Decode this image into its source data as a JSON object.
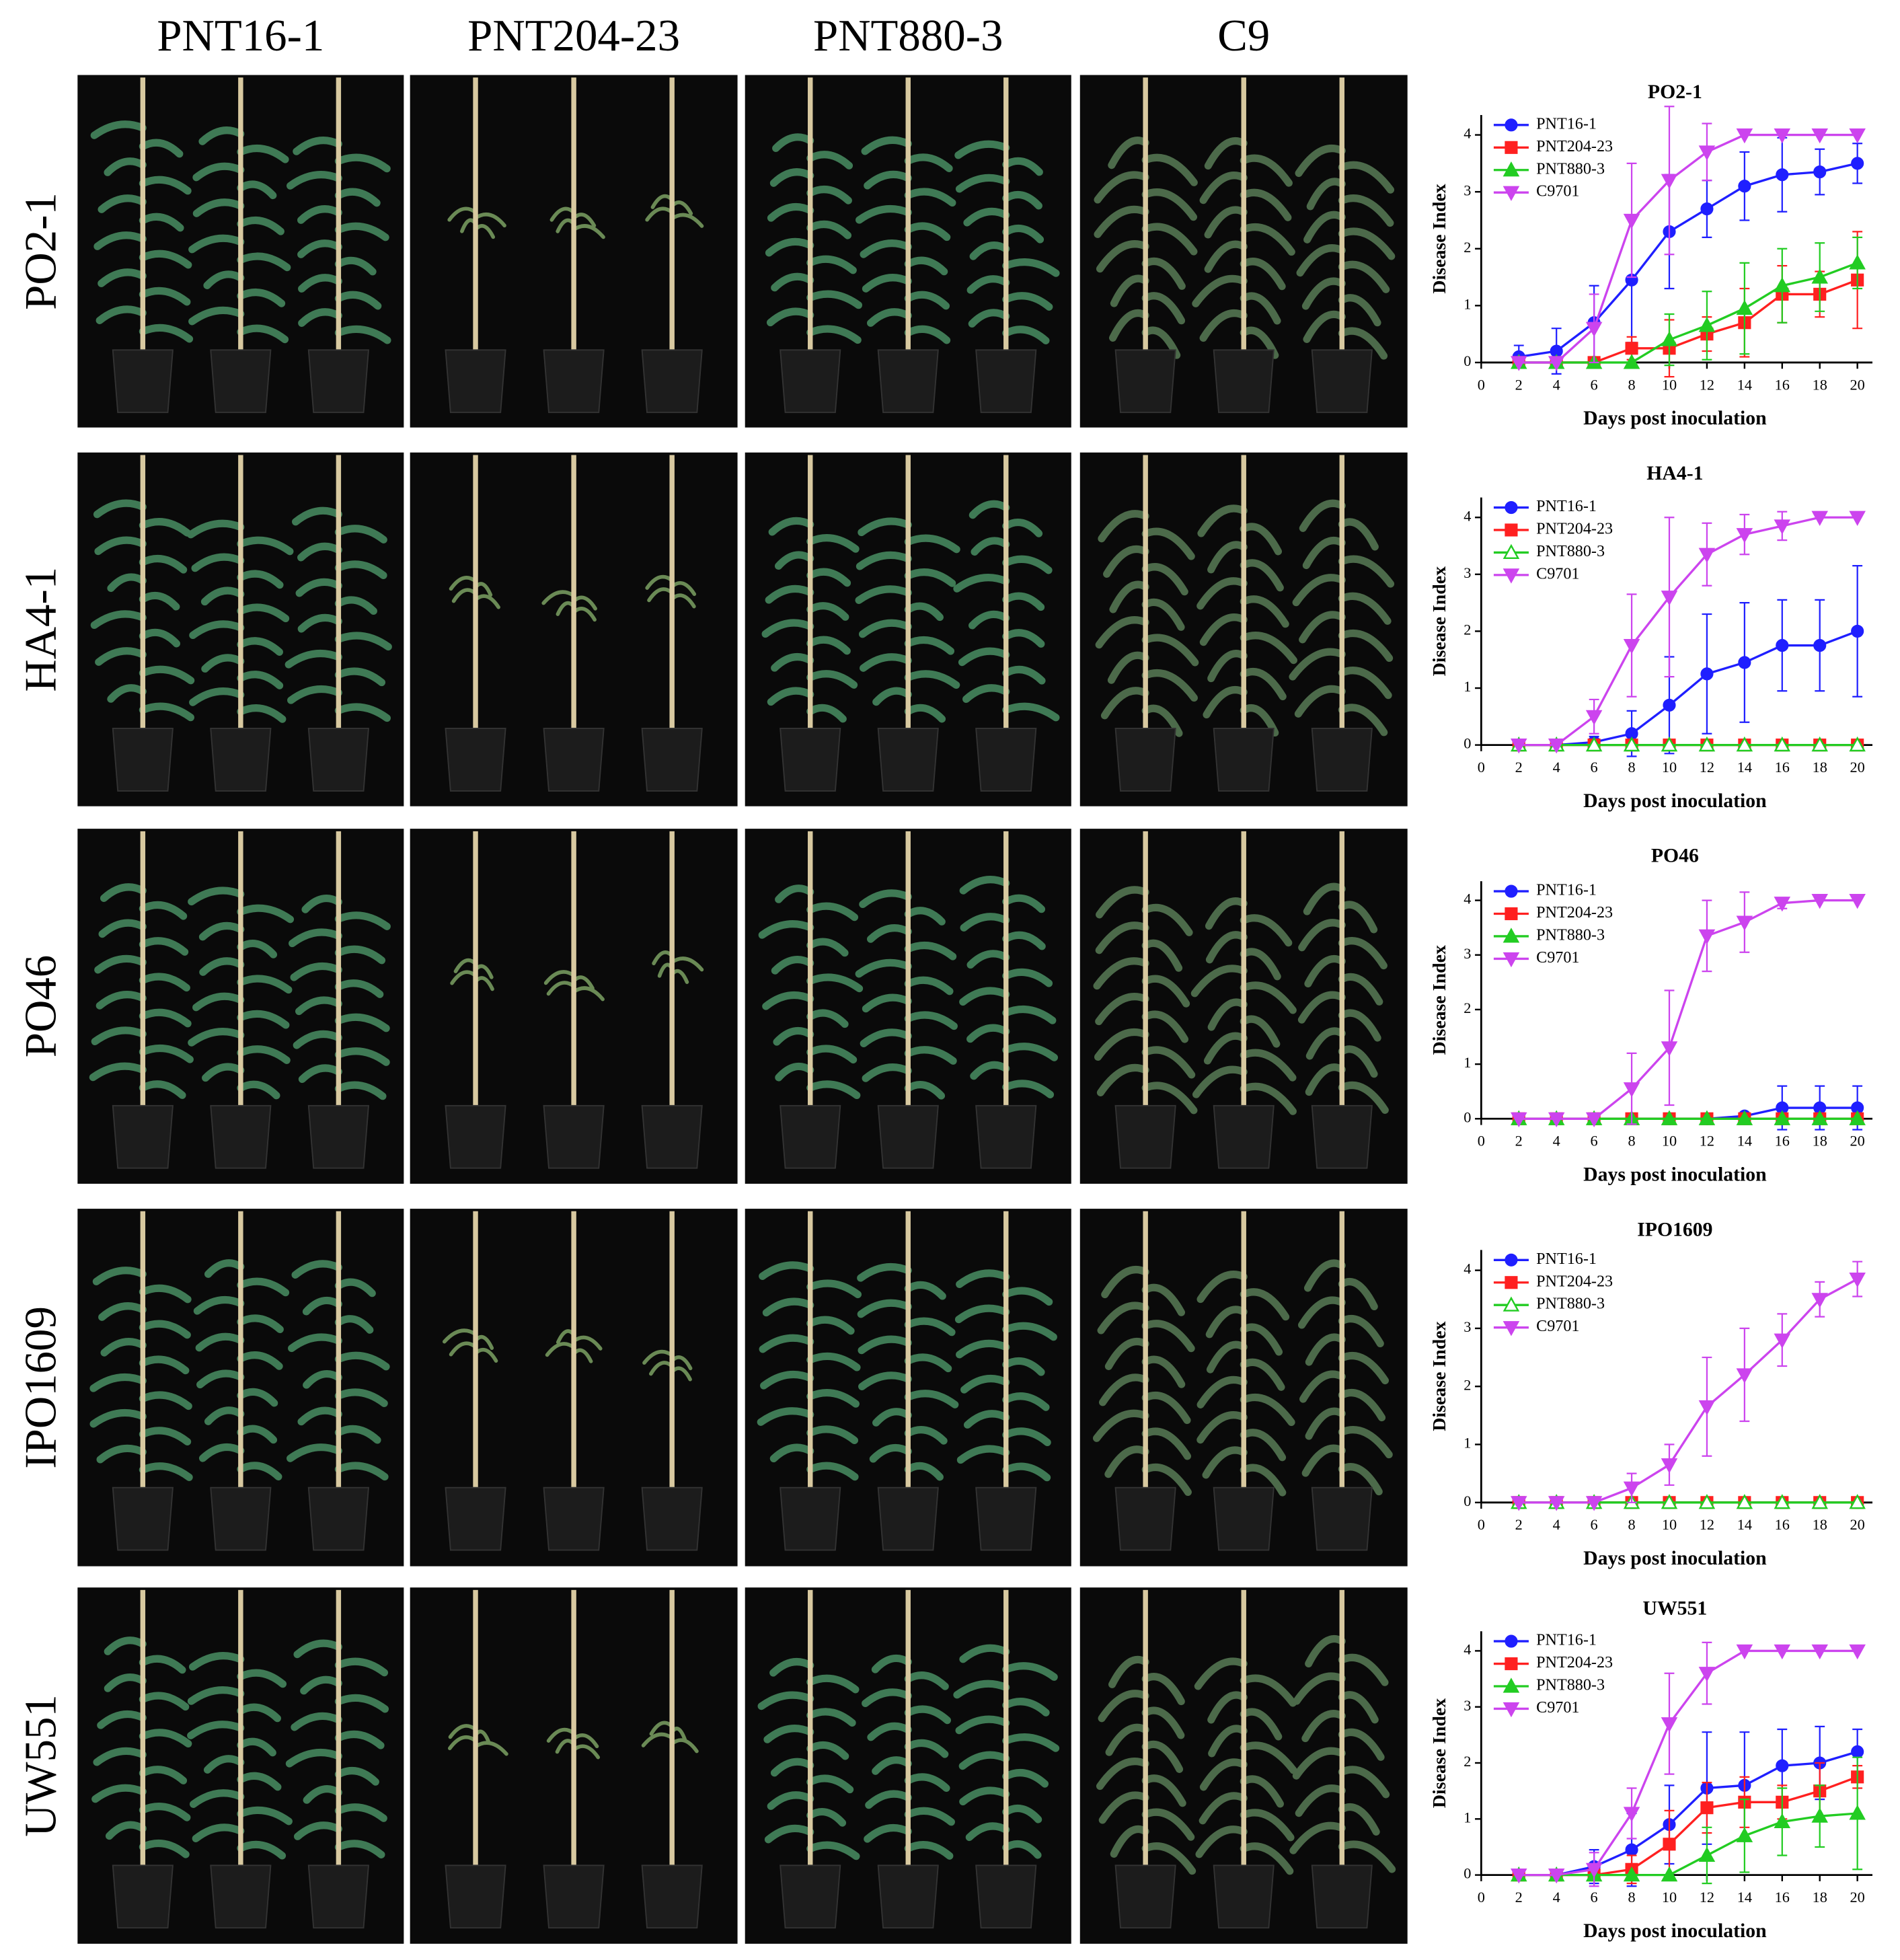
{
  "column_labels": [
    "PNT16-1",
    "PNT204-23",
    "PNT880-3",
    "C9"
  ],
  "row_labels": [
    "PO2-1",
    "HA4-1",
    "PO46",
    "IPO1609",
    "UW551"
  ],
  "chart_data": [
    {
      "type": "line",
      "title": "PO2-1",
      "x_label": "Days post inoculation",
      "y_label": "Disease Index",
      "x": [
        2,
        4,
        6,
        8,
        10,
        12,
        14,
        16,
        18,
        20
      ],
      "xlim": [
        0,
        20.6
      ],
      "ylim": [
        0,
        4.35
      ],
      "xticks": [
        0,
        2,
        4,
        6,
        8,
        10,
        12,
        14,
        16,
        18,
        20
      ],
      "yticks": [
        0,
        1,
        2,
        3,
        4
      ],
      "series": [
        {
          "name": "PNT16-1",
          "color": "#1f1fff",
          "marker": "circle",
          "filled": true,
          "values": [
            0.1,
            0.2,
            0.7,
            1.45,
            2.3,
            2.7,
            3.1,
            3.3,
            3.35,
            3.5
          ],
          "errors": [
            0.2,
            0.4,
            0.65,
            1.1,
            1.0,
            0.5,
            0.6,
            0.65,
            0.4,
            0.35
          ]
        },
        {
          "name": "PNT204-23",
          "color": "#ff2020",
          "marker": "square",
          "filled": true,
          "values": [
            0,
            0,
            0,
            0.25,
            0.25,
            0.5,
            0.7,
            1.2,
            1.2,
            1.45
          ],
          "errors": [
            0,
            0,
            0,
            0.2,
            0.5,
            0.3,
            0.6,
            0.5,
            0.4,
            0.85
          ]
        },
        {
          "name": "PNT880-3",
          "color": "#22cc22",
          "marker": "triangle-up",
          "filled": true,
          "values": [
            0,
            0,
            0,
            0,
            0.4,
            0.65,
            0.95,
            1.35,
            1.5,
            1.75
          ],
          "errors": [
            0,
            0,
            0,
            0,
            0.45,
            0.6,
            0.8,
            0.65,
            0.6,
            0.45
          ]
        },
        {
          "name": "C9701",
          "color": "#cc44ee",
          "marker": "triangle-down",
          "filled": true,
          "values": [
            0,
            0,
            0.6,
            2.5,
            3.2,
            3.7,
            4,
            4,
            4,
            4
          ],
          "errors": [
            0,
            0,
            0.6,
            1.0,
            1.3,
            0.5,
            0,
            0,
            0,
            0
          ]
        }
      ]
    },
    {
      "type": "line",
      "title": "HA4-1",
      "x_label": "Days post inoculation",
      "y_label": "Disease Index",
      "x": [
        2,
        4,
        6,
        8,
        10,
        12,
        14,
        16,
        18,
        20
      ],
      "xlim": [
        0,
        20.6
      ],
      "ylim": [
        0,
        4.35
      ],
      "xticks": [
        0,
        2,
        4,
        6,
        8,
        10,
        12,
        14,
        16,
        18,
        20
      ],
      "yticks": [
        0,
        1,
        2,
        3,
        4
      ],
      "series": [
        {
          "name": "PNT16-1",
          "color": "#1f1fff",
          "marker": "circle",
          "filled": true,
          "values": [
            0,
            0,
            0.05,
            0.2,
            0.7,
            1.25,
            1.45,
            1.75,
            1.75,
            2.0
          ],
          "errors": [
            0,
            0,
            0.1,
            0.4,
            0.85,
            1.05,
            1.05,
            0.8,
            0.8,
            1.15
          ]
        },
        {
          "name": "PNT204-23",
          "color": "#ff2020",
          "marker": "square",
          "filled": true,
          "values": [
            0,
            0,
            0,
            0,
            0,
            0,
            0,
            0,
            0,
            0
          ],
          "errors": [
            0,
            0,
            0,
            0,
            0,
            0,
            0,
            0,
            0,
            0
          ]
        },
        {
          "name": "PNT880-3",
          "color": "#22cc22",
          "marker": "triangle-up",
          "filled": false,
          "values": [
            0,
            0,
            0,
            0,
            0,
            0,
            0,
            0,
            0,
            0
          ],
          "errors": [
            0,
            0,
            0,
            0,
            0,
            0,
            0,
            0,
            0,
            0
          ]
        },
        {
          "name": "C9701",
          "color": "#cc44ee",
          "marker": "triangle-down",
          "filled": true,
          "values": [
            0,
            0,
            0.5,
            1.75,
            2.6,
            3.35,
            3.7,
            3.85,
            4,
            4
          ],
          "errors": [
            0,
            0,
            0.3,
            0.9,
            1.4,
            0.55,
            0.35,
            0.25,
            0,
            0
          ]
        }
      ]
    },
    {
      "type": "line",
      "title": "PO46",
      "x_label": "Days post inoculation",
      "y_label": "Disease Index",
      "x": [
        2,
        4,
        6,
        8,
        10,
        12,
        14,
        16,
        18,
        20
      ],
      "xlim": [
        0,
        20.6
      ],
      "ylim": [
        0,
        4.35
      ],
      "xticks": [
        0,
        2,
        4,
        6,
        8,
        10,
        12,
        14,
        16,
        18,
        20
      ],
      "yticks": [
        0,
        1,
        2,
        3,
        4
      ],
      "series": [
        {
          "name": "PNT16-1",
          "color": "#1f1fff",
          "marker": "circle",
          "filled": true,
          "values": [
            0,
            0,
            0,
            0,
            0,
            0,
            0.05,
            0.2,
            0.2,
            0.2
          ],
          "errors": [
            0,
            0,
            0,
            0,
            0,
            0,
            0.05,
            0.4,
            0.4,
            0.4
          ]
        },
        {
          "name": "PNT204-23",
          "color": "#ff2020",
          "marker": "square",
          "filled": true,
          "values": [
            0,
            0,
            0,
            0,
            0,
            0,
            0,
            0,
            0,
            0
          ],
          "errors": [
            0,
            0,
            0,
            0,
            0,
            0,
            0,
            0,
            0,
            0
          ]
        },
        {
          "name": "PNT880-3",
          "color": "#22cc22",
          "marker": "triangle-up",
          "filled": true,
          "values": [
            0,
            0,
            0,
            0,
            0,
            0,
            0,
            0,
            0,
            0
          ],
          "errors": [
            0,
            0,
            0,
            0,
            0,
            0,
            0,
            0,
            0,
            0
          ]
        },
        {
          "name": "C9701",
          "color": "#cc44ee",
          "marker": "triangle-down",
          "filled": true,
          "values": [
            0,
            0,
            0,
            0.55,
            1.3,
            3.35,
            3.6,
            3.95,
            4,
            4
          ],
          "errors": [
            0,
            0,
            0,
            0.65,
            1.05,
            0.65,
            0.55,
            0.1,
            0,
            0
          ]
        }
      ]
    },
    {
      "type": "line",
      "title": "IPO1609",
      "x_label": "Days post inoculation",
      "y_label": "Disease Index",
      "x": [
        2,
        4,
        6,
        8,
        10,
        12,
        14,
        16,
        18,
        20
      ],
      "xlim": [
        0,
        20.6
      ],
      "ylim": [
        0,
        4.35
      ],
      "xticks": [
        0,
        2,
        4,
        6,
        8,
        10,
        12,
        14,
        16,
        18,
        20
      ],
      "yticks": [
        0,
        1,
        2,
        3,
        4
      ],
      "series": [
        {
          "name": "PNT16-1",
          "color": "#1f1fff",
          "marker": "circle",
          "filled": true,
          "values": [
            0,
            0,
            0,
            0,
            0,
            0,
            0,
            0,
            0,
            0
          ],
          "errors": [
            0,
            0,
            0,
            0,
            0,
            0,
            0,
            0,
            0,
            0
          ]
        },
        {
          "name": "PNT204-23",
          "color": "#ff2020",
          "marker": "square",
          "filled": true,
          "values": [
            0,
            0,
            0,
            0,
            0,
            0,
            0,
            0,
            0,
            0
          ],
          "errors": [
            0,
            0,
            0,
            0,
            0,
            0,
            0,
            0,
            0,
            0
          ]
        },
        {
          "name": "PNT880-3",
          "color": "#22cc22",
          "marker": "triangle-up",
          "filled": false,
          "values": [
            0,
            0,
            0,
            0,
            0,
            0,
            0,
            0,
            0,
            0
          ],
          "errors": [
            0,
            0,
            0,
            0,
            0,
            0,
            0,
            0,
            0,
            0
          ]
        },
        {
          "name": "C9701",
          "color": "#cc44ee",
          "marker": "triangle-down",
          "filled": true,
          "values": [
            0,
            0,
            0,
            0.25,
            0.65,
            1.65,
            2.2,
            2.8,
            3.5,
            3.85
          ],
          "errors": [
            0,
            0,
            0,
            0.25,
            0.35,
            0.85,
            0.8,
            0.45,
            0.3,
            0.3
          ]
        }
      ]
    },
    {
      "type": "line",
      "title": "UW551",
      "x_label": "Days post inoculation",
      "y_label": "Disease Index",
      "x": [
        2,
        4,
        6,
        8,
        10,
        12,
        14,
        16,
        18,
        20
      ],
      "xlim": [
        0,
        20.6
      ],
      "ylim": [
        0,
        4.35
      ],
      "xticks": [
        0,
        2,
        4,
        6,
        8,
        10,
        12,
        14,
        16,
        18,
        20
      ],
      "yticks": [
        0,
        1,
        2,
        3,
        4
      ],
      "series": [
        {
          "name": "PNT16-1",
          "color": "#1f1fff",
          "marker": "circle",
          "filled": true,
          "values": [
            0,
            0,
            0.15,
            0.45,
            0.9,
            1.55,
            1.6,
            1.95,
            2.0,
            2.2
          ],
          "errors": [
            0,
            0,
            0.3,
            0.65,
            0.7,
            1.0,
            0.95,
            0.65,
            0.65,
            0.4
          ]
        },
        {
          "name": "PNT204-23",
          "color": "#ff2020",
          "marker": "square",
          "filled": true,
          "values": [
            0,
            0,
            0,
            0.1,
            0.55,
            1.2,
            1.3,
            1.3,
            1.5,
            1.75
          ],
          "errors": [
            0,
            0,
            0,
            0.25,
            0.6,
            0.45,
            0.45,
            0.3,
            0.5,
            0.2
          ]
        },
        {
          "name": "PNT880-3",
          "color": "#22cc22",
          "marker": "triangle-up",
          "filled": true,
          "values": [
            0,
            0,
            0,
            0,
            0,
            0.35,
            0.7,
            0.95,
            1.05,
            1.1
          ],
          "errors": [
            0,
            0,
            0,
            0,
            0,
            0.5,
            0.65,
            0.6,
            0.55,
            1.0
          ]
        },
        {
          "name": "C9701",
          "color": "#cc44ee",
          "marker": "triangle-down",
          "filled": true,
          "values": [
            0,
            0,
            0.1,
            1.1,
            2.7,
            3.6,
            4,
            4,
            4,
            4
          ],
          "errors": [
            0,
            0,
            0.3,
            0.45,
            0.9,
            0.55,
            0,
            0,
            0,
            0
          ]
        }
      ]
    }
  ]
}
